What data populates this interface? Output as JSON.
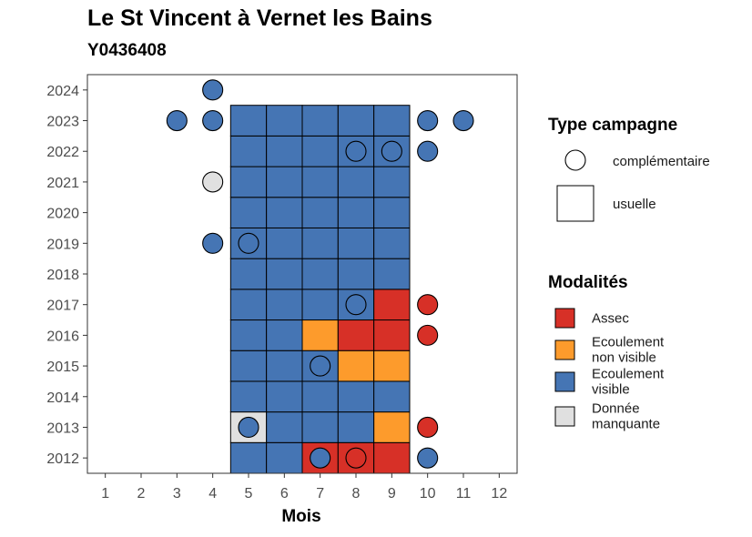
{
  "chart_data": {
    "type": "heatmap",
    "title": "Le St Vincent à Vernet les Bains",
    "subtitle": "Y0436408",
    "xlabel": "Mois",
    "ylabel": "",
    "x_ticks": [
      1,
      2,
      3,
      4,
      5,
      6,
      7,
      8,
      9,
      10,
      11,
      12
    ],
    "y_ticks": [
      2012,
      2013,
      2014,
      2015,
      2016,
      2017,
      2018,
      2019,
      2020,
      2021,
      2022,
      2023,
      2024
    ],
    "xlim": [
      0.5,
      12.5
    ],
    "ylim": [
      2011.5,
      2024.5
    ],
    "grid": false,
    "colors": {
      "Assec": "#d73027",
      "Ecoulement non visible": "#fd9b2c",
      "Ecoulement visible": "#4575b4",
      "Donnée manquante": "#e0e0e0"
    },
    "usuelle": [
      {
        "year": 2012,
        "months": [
          "visible",
          "visible",
          "assec",
          "assec",
          "assec"
        ]
      },
      {
        "year": 2013,
        "months": [
          "manquante",
          "visible",
          "visible",
          "visible",
          "nonvisible"
        ]
      },
      {
        "year": 2014,
        "months": [
          "visible",
          "visible",
          "visible",
          "visible",
          "visible"
        ]
      },
      {
        "year": 2015,
        "months": [
          "visible",
          "visible",
          "visible",
          "nonvisible",
          "nonvisible"
        ]
      },
      {
        "year": 2016,
        "months": [
          "visible",
          "visible",
          "nonvisible",
          "assec",
          "assec"
        ]
      },
      {
        "year": 2017,
        "months": [
          "visible",
          "visible",
          "visible",
          "visible",
          "assec"
        ]
      },
      {
        "year": 2018,
        "months": [
          "visible",
          "visible",
          "visible",
          "visible",
          "visible"
        ]
      },
      {
        "year": 2019,
        "months": [
          "visible",
          "visible",
          "visible",
          "visible",
          "visible"
        ]
      },
      {
        "year": 2020,
        "months": [
          "visible",
          "visible",
          "visible",
          "visible",
          "visible"
        ]
      },
      {
        "year": 2021,
        "months": [
          "visible",
          "visible",
          "visible",
          "visible",
          "visible"
        ]
      },
      {
        "year": 2022,
        "months": [
          "visible",
          "visible",
          "visible",
          "visible",
          "visible"
        ]
      },
      {
        "year": 2023,
        "months": [
          "visible",
          "visible",
          "visible",
          "visible",
          "visible"
        ]
      }
    ],
    "usuelle_first_month": 5,
    "complementaire": [
      {
        "month": 4,
        "year": 2024,
        "mod": "visible"
      },
      {
        "month": 3,
        "year": 2023,
        "mod": "visible"
      },
      {
        "month": 4,
        "year": 2023,
        "mod": "visible"
      },
      {
        "month": 10,
        "year": 2023,
        "mod": "visible"
      },
      {
        "month": 11,
        "year": 2023,
        "mod": "visible"
      },
      {
        "month": 8,
        "year": 2022,
        "mod": "visible"
      },
      {
        "month": 9,
        "year": 2022,
        "mod": "visible"
      },
      {
        "month": 10,
        "year": 2022,
        "mod": "visible"
      },
      {
        "month": 4,
        "year": 2021,
        "mod": "manquante"
      },
      {
        "month": 4,
        "year": 2019,
        "mod": "visible"
      },
      {
        "month": 5,
        "year": 2019,
        "mod": "visible"
      },
      {
        "month": 8,
        "year": 2017,
        "mod": "visible"
      },
      {
        "month": 10,
        "year": 2017,
        "mod": "assec"
      },
      {
        "month": 10,
        "year": 2016,
        "mod": "assec"
      },
      {
        "month": 7,
        "year": 2015,
        "mod": "visible"
      },
      {
        "month": 5,
        "year": 2013,
        "mod": "visible"
      },
      {
        "month": 10,
        "year": 2013,
        "mod": "assec"
      },
      {
        "month": 7,
        "year": 2012,
        "mod": "visible"
      },
      {
        "month": 8,
        "year": 2012,
        "mod": "assec"
      },
      {
        "month": 10,
        "year": 2012,
        "mod": "visible"
      }
    ],
    "legend": {
      "type_title": "Type campagne",
      "type_items": [
        {
          "shape": "circle",
          "label": "complémentaire"
        },
        {
          "shape": "square",
          "label": "usuelle"
        }
      ],
      "mod_title": "Modalités",
      "mod_items": [
        {
          "key": "assec",
          "color": "#d73027",
          "lines": [
            "Assec"
          ]
        },
        {
          "key": "nonvisible",
          "color": "#fd9b2c",
          "lines": [
            "Ecoulement",
            "non visible"
          ]
        },
        {
          "key": "visible",
          "color": "#4575b4",
          "lines": [
            "Ecoulement",
            "visible"
          ]
        },
        {
          "key": "manquante",
          "color": "#e0e0e0",
          "lines": [
            "Donnée",
            "manquante"
          ]
        }
      ]
    }
  }
}
